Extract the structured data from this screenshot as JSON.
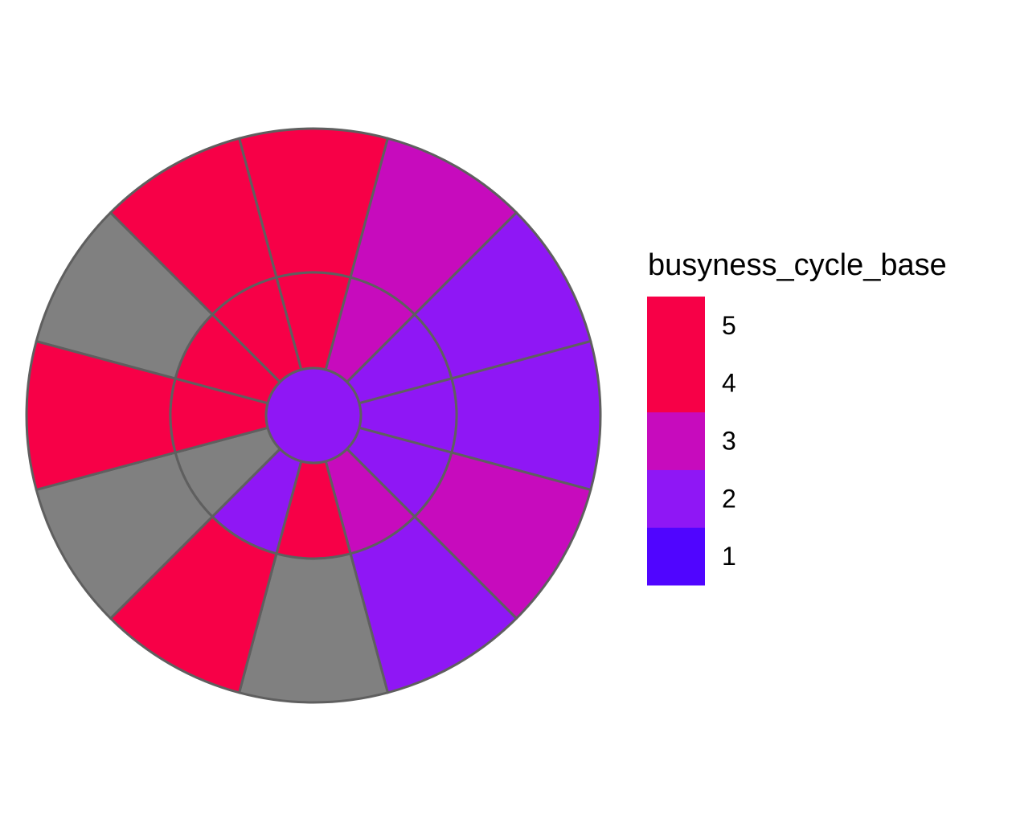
{
  "chart_data": {
    "type": "heatmap",
    "subtype": "polar-sunburst",
    "title": "",
    "xlabel": "",
    "ylabel": "",
    "direction": "clockwise",
    "start": "top",
    "na_color": "#808080",
    "rings": [
      {
        "name": "center",
        "values": [
          2
        ]
      },
      {
        "name": "middle",
        "values": [
          5,
          3,
          2,
          2,
          2,
          3,
          5,
          2,
          null,
          5,
          5,
          5
        ]
      },
      {
        "name": "outer",
        "values": [
          5,
          3,
          2,
          2,
          3,
          2,
          null,
          5,
          null,
          5,
          null,
          5
        ]
      }
    ],
    "legend": {
      "title": "busyness_cycle_base",
      "position": "right",
      "type": "colorbar-binned",
      "ticks": [
        "1",
        "2",
        "3",
        "4",
        "5"
      ],
      "colors": {
        "1": "#5005FF",
        "2": "#8F17F5",
        "3": "#C70BBD",
        "4": "#F70047",
        "5": "#F70047"
      },
      "bands": [
        {
          "color": "#5005FF",
          "from": 0.5,
          "to": 1.5
        },
        {
          "color": "#8F17F5",
          "from": 1.5,
          "to": 2.5
        },
        {
          "color": "#C70BBD",
          "from": 2.5,
          "to": 3.5
        },
        {
          "color": "#F70047",
          "from": 3.5,
          "to": 5.5
        }
      ],
      "range": [
        0.5,
        5.5
      ]
    }
  }
}
